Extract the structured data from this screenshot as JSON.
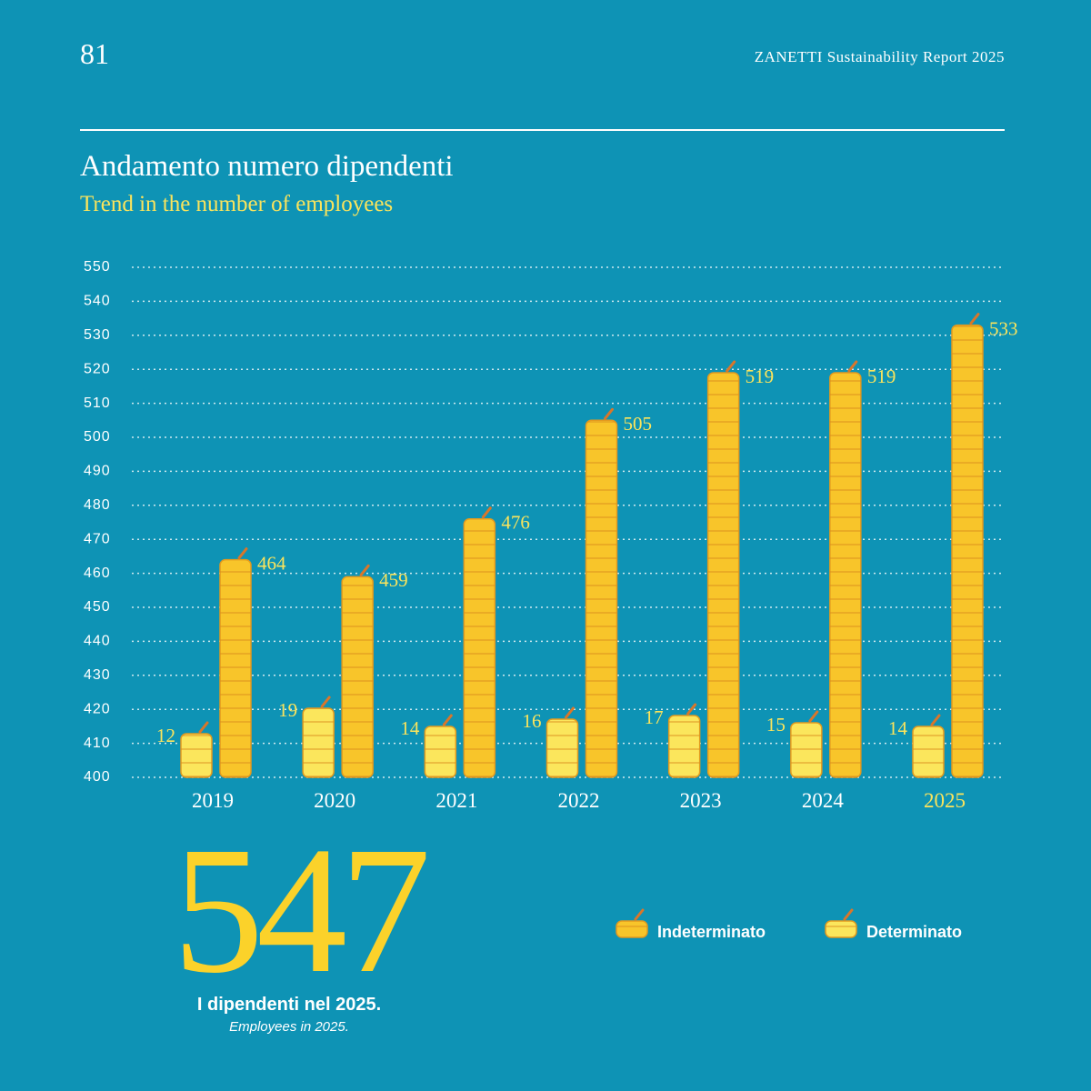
{
  "page_number": "81",
  "header": "ZANETTI Sustainability Report 2025",
  "chart_data": {
    "type": "bar",
    "title": "Andamento numero dipendenti",
    "subtitle": "Trend in the number of employees",
    "categories": [
      "2019",
      "2020",
      "2021",
      "2022",
      "2023",
      "2024",
      "2025"
    ],
    "series": [
      {
        "name": "Indeterminato",
        "color": "#f8c52a",
        "values": [
          464,
          459,
          476,
          505,
          519,
          519,
          533
        ]
      },
      {
        "name": "Determinato",
        "color": "#fbe65c",
        "values": [
          12,
          19,
          14,
          16,
          17,
          15,
          14
        ]
      }
    ],
    "ylim": [
      400,
      550
    ],
    "yticks": [
      400,
      410,
      420,
      430,
      440,
      450,
      460,
      470,
      480,
      490,
      500,
      510,
      520,
      530,
      540,
      550
    ],
    "grid": true
  },
  "highlight": {
    "value": "547",
    "text": "I dipendenti nel 2025.",
    "subtext": "Employees in 2025."
  }
}
